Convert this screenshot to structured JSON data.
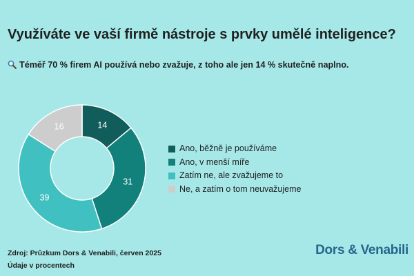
{
  "title": "Využíváte ve vaší firmě nástroje s prvky umělé inteligence?",
  "subtitle": "Téměř 70 % firem AI používá nebo zvažuje, z toho ale jen 14 % skutečně naplno.",
  "subtitle_icon": "magnifier-icon",
  "colors": {
    "background": "#a6e8e8",
    "logo": "#26658a"
  },
  "chart_data": {
    "type": "pie",
    "variant": "donut",
    "title": "",
    "unit": "%",
    "legend_position": "right",
    "categories": [
      "Ano, běžně je používáme",
      "Ano, v menší míře",
      "Zatím ne, ale zvažujeme to",
      "Ne, a zatím o tom neuvažujeme"
    ],
    "values": [
      14,
      31,
      39,
      16
    ],
    "labels": [
      "14",
      "31",
      "39",
      "16"
    ],
    "colors": [
      "#115d5b",
      "#12807b",
      "#40c0c0",
      "#cdcdcd"
    ],
    "label_colors": [
      "#ffffff",
      "#ffffff",
      "#ffffff",
      "#ffffff"
    ]
  },
  "footer": {
    "source": "Zdroj: Průzkum Dors & Venabili, červen 2025",
    "note": "Údaje v procentech"
  },
  "logo_text": "Dors & Venabili"
}
